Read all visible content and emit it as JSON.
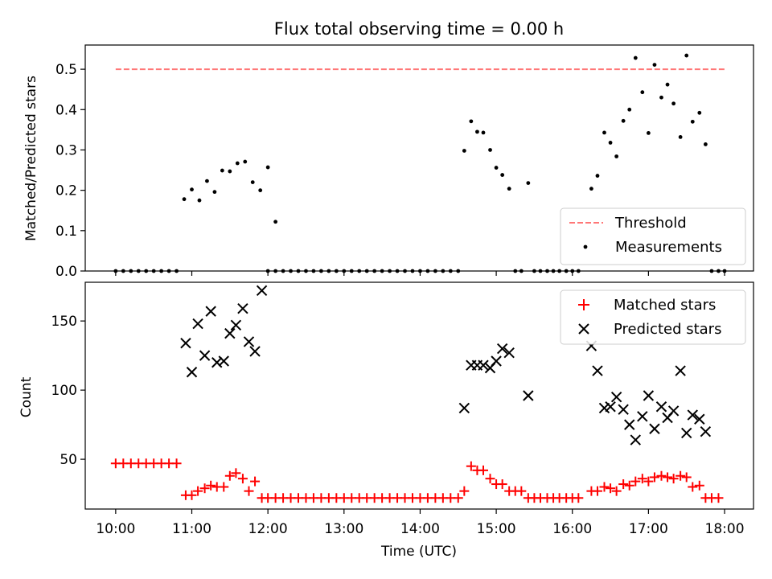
{
  "chart_data": {
    "type": "scatter",
    "title": "Flux total observing time = 0.00 h",
    "xlabel": "Time (UTC)",
    "x_tick_labels": [
      "10:00",
      "11:00",
      "12:00",
      "13:00",
      "14:00",
      "15:00",
      "16:00",
      "17:00",
      "18:00"
    ],
    "x_tick_hours": [
      10,
      11,
      12,
      13,
      14,
      15,
      16,
      17,
      18
    ],
    "xlim_hours": [
      9.6,
      18.38
    ],
    "panels": [
      {
        "ylabel": "Matched/Predicted stars",
        "ylim": [
          0,
          0.56
        ],
        "y_ticks": [
          0.0,
          0.1,
          0.2,
          0.3,
          0.4,
          0.5
        ],
        "y_tick_labels": [
          "0.0",
          "0.1",
          "0.2",
          "0.3",
          "0.4",
          "0.5"
        ],
        "legend": [
          "Threshold",
          "Measurements"
        ],
        "legend_position": "lower-right",
        "threshold": {
          "name": "Threshold",
          "value": 0.5,
          "x_range_hours": [
            10.0,
            18.0
          ],
          "color": "#ff7777",
          "style": "dashed"
        },
        "measurements": {
          "name": "Measurements",
          "color": "#000000",
          "marker": "dot",
          "points": [
            [
              10.0,
              0
            ],
            [
              10.1,
              0
            ],
            [
              10.2,
              0
            ],
            [
              10.3,
              0
            ],
            [
              10.4,
              0
            ],
            [
              10.5,
              0
            ],
            [
              10.6,
              0
            ],
            [
              10.7,
              0
            ],
            [
              10.8,
              0
            ],
            [
              10.9,
              0.178
            ],
            [
              11.0,
              0.202
            ],
            [
              11.1,
              0.175
            ],
            [
              11.2,
              0.223
            ],
            [
              11.3,
              0.196
            ],
            [
              11.4,
              0.249
            ],
            [
              11.5,
              0.247
            ],
            [
              11.6,
              0.267
            ],
            [
              11.7,
              0.271
            ],
            [
              11.8,
              0.22
            ],
            [
              11.9,
              0.2
            ],
            [
              12.0,
              0.257
            ],
            [
              12.1,
              0.122
            ],
            [
              12.0,
              0
            ],
            [
              12.1,
              0
            ],
            [
              12.2,
              0
            ],
            [
              12.3,
              0
            ],
            [
              12.4,
              0
            ],
            [
              12.5,
              0
            ],
            [
              12.6,
              0
            ],
            [
              12.7,
              0
            ],
            [
              12.8,
              0
            ],
            [
              12.9,
              0
            ],
            [
              13.0,
              0
            ],
            [
              13.1,
              0
            ],
            [
              13.2,
              0
            ],
            [
              13.3,
              0
            ],
            [
              13.4,
              0
            ],
            [
              13.5,
              0
            ],
            [
              13.6,
              0
            ],
            [
              13.7,
              0
            ],
            [
              13.8,
              0
            ],
            [
              13.9,
              0
            ],
            [
              14.0,
              0
            ],
            [
              14.1,
              0
            ],
            [
              14.2,
              0
            ],
            [
              14.3,
              0
            ],
            [
              14.4,
              0
            ],
            [
              14.5,
              0
            ],
            [
              14.58,
              0.298
            ],
            [
              14.67,
              0.371
            ],
            [
              14.75,
              0.345
            ],
            [
              14.83,
              0.343
            ],
            [
              14.92,
              0.3
            ],
            [
              15.0,
              0.256
            ],
            [
              15.08,
              0.238
            ],
            [
              15.17,
              0.204
            ],
            [
              15.25,
              0
            ],
            [
              15.33,
              0
            ],
            [
              15.42,
              0.218
            ],
            [
              15.5,
              0
            ],
            [
              15.58,
              0
            ],
            [
              15.67,
              0
            ],
            [
              15.75,
              0
            ],
            [
              15.83,
              0
            ],
            [
              15.92,
              0
            ],
            [
              16.0,
              0
            ],
            [
              16.08,
              0
            ],
            [
              16.25,
              0.204
            ],
            [
              16.33,
              0.236
            ],
            [
              16.42,
              0.343
            ],
            [
              16.5,
              0.318
            ],
            [
              16.58,
              0.284
            ],
            [
              16.67,
              0.372
            ],
            [
              16.75,
              0.4
            ],
            [
              16.83,
              0.528
            ],
            [
              16.92,
              0.443
            ],
            [
              17.0,
              0.342
            ],
            [
              17.08,
              0.511
            ],
            [
              17.17,
              0.43
            ],
            [
              17.25,
              0.462
            ],
            [
              17.33,
              0.415
            ],
            [
              17.42,
              0.332
            ],
            [
              17.5,
              0.534
            ],
            [
              17.58,
              0.37
            ],
            [
              17.67,
              0.392
            ],
            [
              17.75,
              0.314
            ],
            [
              17.83,
              0
            ],
            [
              17.92,
              0
            ],
            [
              18.0,
              0
            ]
          ]
        }
      },
      {
        "ylabel": "Count",
        "ylim": [
          14,
          178
        ],
        "y_ticks": [
          50,
          100,
          150
        ],
        "y_tick_labels": [
          "50",
          "100",
          "150"
        ],
        "legend": [
          "Matched stars",
          "Predicted stars"
        ],
        "legend_position": "upper-right",
        "matched": {
          "name": "Matched stars",
          "color": "#ff0000",
          "marker": "plus",
          "points": [
            [
              10.0,
              47
            ],
            [
              10.1,
              47
            ],
            [
              10.2,
              47
            ],
            [
              10.3,
              47
            ],
            [
              10.4,
              47
            ],
            [
              10.5,
              47
            ],
            [
              10.6,
              47
            ],
            [
              10.7,
              47
            ],
            [
              10.8,
              47
            ],
            [
              10.92,
              24
            ],
            [
              11.0,
              24
            ],
            [
              11.08,
              27
            ],
            [
              11.17,
              29
            ],
            [
              11.25,
              31
            ],
            [
              11.33,
              30
            ],
            [
              11.42,
              30
            ],
            [
              11.5,
              38
            ],
            [
              11.58,
              40
            ],
            [
              11.67,
              36
            ],
            [
              11.75,
              27
            ],
            [
              11.83,
              34
            ],
            [
              11.92,
              22
            ],
            [
              12.0,
              22
            ],
            [
              12.1,
              22
            ],
            [
              12.2,
              22
            ],
            [
              12.3,
              22
            ],
            [
              12.4,
              22
            ],
            [
              12.5,
              22
            ],
            [
              12.6,
              22
            ],
            [
              12.7,
              22
            ],
            [
              12.8,
              22
            ],
            [
              12.9,
              22
            ],
            [
              13.0,
              22
            ],
            [
              13.1,
              22
            ],
            [
              13.2,
              22
            ],
            [
              13.3,
              22
            ],
            [
              13.4,
              22
            ],
            [
              13.5,
              22
            ],
            [
              13.6,
              22
            ],
            [
              13.7,
              22
            ],
            [
              13.8,
              22
            ],
            [
              13.9,
              22
            ],
            [
              14.0,
              22
            ],
            [
              14.1,
              22
            ],
            [
              14.2,
              22
            ],
            [
              14.3,
              22
            ],
            [
              14.4,
              22
            ],
            [
              14.5,
              22
            ],
            [
              14.58,
              27
            ],
            [
              14.67,
              45
            ],
            [
              14.75,
              42
            ],
            [
              14.83,
              42
            ],
            [
              14.92,
              36
            ],
            [
              15.0,
              32
            ],
            [
              15.08,
              32
            ],
            [
              15.17,
              27
            ],
            [
              15.25,
              27
            ],
            [
              15.33,
              27
            ],
            [
              15.42,
              22
            ],
            [
              15.5,
              22
            ],
            [
              15.58,
              22
            ],
            [
              15.67,
              22
            ],
            [
              15.75,
              22
            ],
            [
              15.83,
              22
            ],
            [
              15.92,
              22
            ],
            [
              16.0,
              22
            ],
            [
              16.08,
              22
            ],
            [
              16.25,
              27
            ],
            [
              16.33,
              27
            ],
            [
              16.42,
              30
            ],
            [
              16.5,
              29
            ],
            [
              16.58,
              27
            ],
            [
              16.67,
              32
            ],
            [
              16.75,
              31
            ],
            [
              16.83,
              34
            ],
            [
              16.92,
              36
            ],
            [
              17.0,
              34
            ],
            [
              17.08,
              37
            ],
            [
              17.17,
              38
            ],
            [
              17.25,
              37
            ],
            [
              17.33,
              36
            ],
            [
              17.42,
              38
            ],
            [
              17.5,
              37
            ],
            [
              17.58,
              30
            ],
            [
              17.67,
              31
            ],
            [
              17.75,
              22
            ],
            [
              17.83,
              22
            ],
            [
              17.92,
              22
            ]
          ]
        },
        "predicted": {
          "name": "Predicted stars",
          "color": "#000000",
          "marker": "x",
          "points": [
            [
              10.92,
              134
            ],
            [
              11.0,
              113
            ],
            [
              11.08,
              148
            ],
            [
              11.17,
              125
            ],
            [
              11.25,
              157
            ],
            [
              11.33,
              120
            ],
            [
              11.42,
              121
            ],
            [
              11.5,
              141
            ],
            [
              11.58,
              147
            ],
            [
              11.67,
              159
            ],
            [
              11.75,
              135
            ],
            [
              11.83,
              128
            ],
            [
              11.92,
              172
            ],
            [
              14.58,
              87
            ],
            [
              14.67,
              118
            ],
            [
              14.75,
              118
            ],
            [
              14.83,
              118
            ],
            [
              14.92,
              116
            ],
            [
              15.0,
              121
            ],
            [
              15.08,
              130
            ],
            [
              15.17,
              127
            ],
            [
              15.42,
              96
            ],
            [
              16.25,
              132
            ],
            [
              16.33,
              114
            ],
            [
              16.42,
              87
            ],
            [
              16.5,
              88
            ],
            [
              16.58,
              95
            ],
            [
              16.67,
              86
            ],
            [
              16.75,
              75
            ],
            [
              16.83,
              64
            ],
            [
              16.92,
              81
            ],
            [
              17.0,
              96
            ],
            [
              17.08,
              72
            ],
            [
              17.17,
              88
            ],
            [
              17.25,
              80
            ],
            [
              17.33,
              85
            ],
            [
              17.42,
              114
            ],
            [
              17.5,
              69
            ],
            [
              17.58,
              82
            ],
            [
              17.67,
              79
            ],
            [
              17.75,
              70
            ]
          ]
        }
      }
    ]
  }
}
